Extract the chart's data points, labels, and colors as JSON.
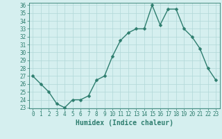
{
  "xlabel": "Humidex (Indice chaleur)",
  "ylabel": "",
  "x": [
    0,
    1,
    2,
    3,
    4,
    5,
    6,
    7,
    8,
    9,
    10,
    11,
    12,
    13,
    14,
    15,
    16,
    17,
    18,
    19,
    20,
    21,
    22,
    23
  ],
  "y": [
    27,
    26,
    25,
    23.5,
    23,
    24,
    24,
    24.5,
    26.5,
    27,
    29.5,
    31.5,
    32.5,
    33,
    33,
    36,
    33.5,
    35.5,
    35.5,
    33,
    32,
    30.5,
    28,
    26.5
  ],
  "line_color": "#2d7d6e",
  "marker_color": "#2d7d6e",
  "bg_color": "#d5efef",
  "grid_color": "#b0d8d8",
  "axis_color": "#2d7d6e",
  "tick_label_color": "#2d7d6e",
  "xlabel_color": "#2d7d6e",
  "ylim": [
    23,
    36
  ],
  "xlim": [
    -0.5,
    23.5
  ],
  "yticks": [
    23,
    24,
    25,
    26,
    27,
    28,
    29,
    30,
    31,
    32,
    33,
    34,
    35,
    36
  ],
  "xticks": [
    0,
    1,
    2,
    3,
    4,
    5,
    6,
    7,
    8,
    9,
    10,
    11,
    12,
    13,
    14,
    15,
    16,
    17,
    18,
    19,
    20,
    21,
    22,
    23
  ],
  "fontsize_ticks": 5.5,
  "fontsize_xlabel": 7,
  "marker_size": 2.5,
  "line_width": 1.0
}
